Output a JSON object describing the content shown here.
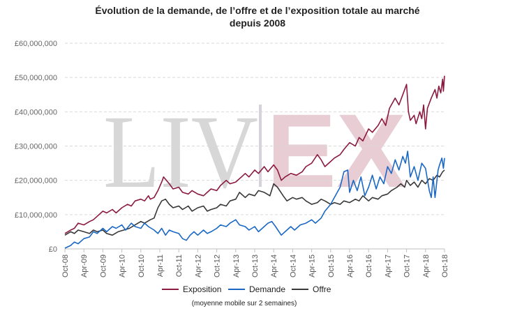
{
  "chart_data": {
    "type": "line",
    "title_line1": "Évolution de la demande, de l’offre et de l’exposition totale au marché",
    "title_line2": "depuis 2008",
    "watermark_left": "LIV",
    "watermark_right": "EX",
    "note": "(moyenne mobile sur 2 semaines)",
    "ylim": [
      0,
      60000000
    ],
    "y_ticks": [
      0,
      10000000,
      20000000,
      30000000,
      40000000,
      50000000,
      60000000
    ],
    "y_tick_labels": [
      "£0",
      "£10,000,000",
      "£20,000,000",
      "£30,000,000",
      "£40,000,000",
      "£50,000,000",
      "£60,000,000"
    ],
    "x_range": [
      2008.75,
      2018.75
    ],
    "x_ticks": [
      2008.75,
      2009.25,
      2009.75,
      2010.25,
      2010.75,
      2011.25,
      2011.75,
      2012.25,
      2012.75,
      2013.25,
      2013.75,
      2014.25,
      2014.75,
      2015.25,
      2015.75,
      2016.25,
      2016.75,
      2017.25,
      2017.75,
      2018.25,
      2018.75
    ],
    "x_tick_labels": [
      "Oct-08",
      "Apr-09",
      "Oct-09",
      "Apr-10",
      "Oct-10",
      "Apr-11",
      "Oct-11",
      "Apr-12",
      "Oct-12",
      "Apr-13",
      "Oct-13",
      "Apr-14",
      "Oct-14",
      "Apr-15",
      "Oct-15",
      "Apr-16",
      "Oct-16",
      "Apr-17",
      "Oct-17",
      "Apr-18",
      "Oct-18"
    ],
    "grid": true,
    "legend_position": "bottom",
    "series": [
      {
        "name": "Exposition",
        "color": "#8b1a3f",
        "points": [
          [
            2008.75,
            4500000
          ],
          [
            2008.9,
            5500000
          ],
          [
            2009.0,
            6000000
          ],
          [
            2009.1,
            7500000
          ],
          [
            2009.25,
            7000000
          ],
          [
            2009.4,
            8000000
          ],
          [
            2009.5,
            8500000
          ],
          [
            2009.6,
            9500000
          ],
          [
            2009.75,
            11000000
          ],
          [
            2009.85,
            10500000
          ],
          [
            2010.0,
            11500000
          ],
          [
            2010.1,
            10500000
          ],
          [
            2010.25,
            12000000
          ],
          [
            2010.4,
            13000000
          ],
          [
            2010.5,
            12500000
          ],
          [
            2010.6,
            14000000
          ],
          [
            2010.75,
            14500000
          ],
          [
            2010.85,
            14000000
          ],
          [
            2010.95,
            15500000
          ],
          [
            2011.0,
            14500000
          ],
          [
            2011.1,
            15000000
          ],
          [
            2011.2,
            17000000
          ],
          [
            2011.3,
            19500000
          ],
          [
            2011.35,
            21000000
          ],
          [
            2011.5,
            19000000
          ],
          [
            2011.6,
            17500000
          ],
          [
            2011.75,
            18000000
          ],
          [
            2011.85,
            16500000
          ],
          [
            2012.0,
            16000000
          ],
          [
            2012.1,
            17000000
          ],
          [
            2012.25,
            16000000
          ],
          [
            2012.4,
            15500000
          ],
          [
            2012.5,
            16500000
          ],
          [
            2012.6,
            17500000
          ],
          [
            2012.75,
            17000000
          ],
          [
            2012.85,
            18500000
          ],
          [
            2013.0,
            20000000
          ],
          [
            2013.1,
            19000000
          ],
          [
            2013.25,
            19500000
          ],
          [
            2013.4,
            21000000
          ],
          [
            2013.5,
            22000000
          ],
          [
            2013.6,
            21000000
          ],
          [
            2013.75,
            23000000
          ],
          [
            2013.85,
            22000000
          ],
          [
            2014.0,
            24000000
          ],
          [
            2014.1,
            22500000
          ],
          [
            2014.25,
            24500000
          ],
          [
            2014.35,
            23000000
          ],
          [
            2014.45,
            20000000
          ],
          [
            2014.55,
            21000000
          ],
          [
            2014.7,
            22000000
          ],
          [
            2014.85,
            21500000
          ],
          [
            2015.0,
            22500000
          ],
          [
            2015.1,
            24000000
          ],
          [
            2015.25,
            25000000
          ],
          [
            2015.4,
            27500000
          ],
          [
            2015.5,
            26000000
          ],
          [
            2015.6,
            24000000
          ],
          [
            2015.75,
            25500000
          ],
          [
            2015.85,
            26500000
          ],
          [
            2016.0,
            27500000
          ],
          [
            2016.1,
            29000000
          ],
          [
            2016.25,
            31000000
          ],
          [
            2016.4,
            30000000
          ],
          [
            2016.5,
            32500000
          ],
          [
            2016.6,
            31500000
          ],
          [
            2016.75,
            35000000
          ],
          [
            2016.85,
            34000000
          ],
          [
            2017.0,
            36000000
          ],
          [
            2017.1,
            38000000
          ],
          [
            2017.2,
            36000000
          ],
          [
            2017.3,
            41000000
          ],
          [
            2017.45,
            44000000
          ],
          [
            2017.55,
            42000000
          ],
          [
            2017.65,
            45000000
          ],
          [
            2017.75,
            48000000
          ],
          [
            2017.8,
            40000000
          ],
          [
            2017.85,
            37500000
          ],
          [
            2017.95,
            39000000
          ],
          [
            2018.0,
            36500000
          ],
          [
            2018.1,
            40000000
          ],
          [
            2018.15,
            38000000
          ],
          [
            2018.2,
            42000000
          ],
          [
            2018.25,
            35000000
          ],
          [
            2018.3,
            41000000
          ],
          [
            2018.4,
            44000000
          ],
          [
            2018.5,
            46500000
          ],
          [
            2018.55,
            44000000
          ],
          [
            2018.6,
            47500000
          ],
          [
            2018.65,
            45500000
          ],
          [
            2018.7,
            49500000
          ],
          [
            2018.72,
            46000000
          ],
          [
            2018.75,
            50500000
          ]
        ]
      },
      {
        "name": "Demande",
        "color": "#1a68c4",
        "points": [
          [
            2008.75,
            200000
          ],
          [
            2008.9,
            1000000
          ],
          [
            2009.0,
            2000000
          ],
          [
            2009.1,
            1500000
          ],
          [
            2009.25,
            3000000
          ],
          [
            2009.4,
            3500000
          ],
          [
            2009.5,
            5000000
          ],
          [
            2009.6,
            4500000
          ],
          [
            2009.75,
            6000000
          ],
          [
            2009.85,
            5000000
          ],
          [
            2010.0,
            6500000
          ],
          [
            2010.1,
            6000000
          ],
          [
            2010.25,
            7000000
          ],
          [
            2010.35,
            5500000
          ],
          [
            2010.5,
            7500000
          ],
          [
            2010.6,
            6500000
          ],
          [
            2010.75,
            6000000
          ],
          [
            2010.85,
            7500000
          ],
          [
            2010.95,
            6500000
          ],
          [
            2011.1,
            5500000
          ],
          [
            2011.2,
            4500000
          ],
          [
            2011.3,
            6000000
          ],
          [
            2011.4,
            4000000
          ],
          [
            2011.5,
            5500000
          ],
          [
            2011.6,
            5000000
          ],
          [
            2011.75,
            4500000
          ],
          [
            2011.85,
            3000000
          ],
          [
            2011.95,
            2500000
          ],
          [
            2012.05,
            4000000
          ],
          [
            2012.15,
            5000000
          ],
          [
            2012.25,
            4000000
          ],
          [
            2012.4,
            5500000
          ],
          [
            2012.5,
            4500000
          ],
          [
            2012.6,
            5000000
          ],
          [
            2012.75,
            6000000
          ],
          [
            2012.85,
            7000000
          ],
          [
            2013.0,
            6500000
          ],
          [
            2013.1,
            7500000
          ],
          [
            2013.25,
            8500000
          ],
          [
            2013.35,
            7000000
          ],
          [
            2013.5,
            6500000
          ],
          [
            2013.6,
            5500000
          ],
          [
            2013.75,
            6500000
          ],
          [
            2013.85,
            5000000
          ],
          [
            2014.0,
            6500000
          ],
          [
            2014.1,
            7500000
          ],
          [
            2014.2,
            8000000
          ],
          [
            2014.3,
            6500000
          ],
          [
            2014.45,
            4000000
          ],
          [
            2014.55,
            5000000
          ],
          [
            2014.7,
            6500000
          ],
          [
            2014.8,
            5500000
          ],
          [
            2014.95,
            7000000
          ],
          [
            2015.1,
            7500000
          ],
          [
            2015.25,
            8500000
          ],
          [
            2015.35,
            7500000
          ],
          [
            2015.5,
            9000000
          ],
          [
            2015.6,
            11000000
          ],
          [
            2015.75,
            13000000
          ],
          [
            2015.85,
            15000000
          ],
          [
            2016.0,
            18000000
          ],
          [
            2016.1,
            22500000
          ],
          [
            2016.2,
            23000000
          ],
          [
            2016.25,
            16500000
          ],
          [
            2016.35,
            20000000
          ],
          [
            2016.45,
            17000000
          ],
          [
            2016.55,
            21000000
          ],
          [
            2016.65,
            15500000
          ],
          [
            2016.75,
            18000000
          ],
          [
            2016.85,
            21500000
          ],
          [
            2016.95,
            17500000
          ],
          [
            2017.05,
            21000000
          ],
          [
            2017.15,
            19000000
          ],
          [
            2017.25,
            24000000
          ],
          [
            2017.35,
            22000000
          ],
          [
            2017.45,
            26000000
          ],
          [
            2017.55,
            23000000
          ],
          [
            2017.65,
            27000000
          ],
          [
            2017.72,
            25000000
          ],
          [
            2017.78,
            28500000
          ],
          [
            2017.85,
            21000000
          ],
          [
            2017.95,
            24000000
          ],
          [
            2018.05,
            20000000
          ],
          [
            2018.15,
            25000000
          ],
          [
            2018.25,
            23500000
          ],
          [
            2018.35,
            17000000
          ],
          [
            2018.4,
            15000000
          ],
          [
            2018.45,
            21000000
          ],
          [
            2018.5,
            15000000
          ],
          [
            2018.58,
            23000000
          ],
          [
            2018.62,
            24500000
          ],
          [
            2018.68,
            26500000
          ],
          [
            2018.72,
            23500000
          ],
          [
            2018.75,
            26500000
          ]
        ]
      },
      {
        "name": "Offre",
        "color": "#383838",
        "points": [
          [
            2008.75,
            4000000
          ],
          [
            2008.9,
            5000000
          ],
          [
            2009.0,
            4500000
          ],
          [
            2009.1,
            5500000
          ],
          [
            2009.25,
            5000000
          ],
          [
            2009.4,
            4500000
          ],
          [
            2009.5,
            5500000
          ],
          [
            2009.6,
            5000000
          ],
          [
            2009.75,
            5500000
          ],
          [
            2009.85,
            4500000
          ],
          [
            2010.0,
            4000000
          ],
          [
            2010.15,
            5000000
          ],
          [
            2010.3,
            5500000
          ],
          [
            2010.45,
            6000000
          ],
          [
            2010.6,
            7000000
          ],
          [
            2010.75,
            8000000
          ],
          [
            2010.85,
            7500000
          ],
          [
            2011.0,
            8500000
          ],
          [
            2011.1,
            9000000
          ],
          [
            2011.2,
            12000000
          ],
          [
            2011.3,
            14000000
          ],
          [
            2011.4,
            14500000
          ],
          [
            2011.5,
            13000000
          ],
          [
            2011.6,
            12000000
          ],
          [
            2011.75,
            12500000
          ],
          [
            2011.85,
            11500000
          ],
          [
            2012.0,
            12500000
          ],
          [
            2012.1,
            11000000
          ],
          [
            2012.25,
            12000000
          ],
          [
            2012.4,
            12500000
          ],
          [
            2012.5,
            11000000
          ],
          [
            2012.6,
            11500000
          ],
          [
            2012.75,
            12000000
          ],
          [
            2012.85,
            13000000
          ],
          [
            2013.0,
            12500000
          ],
          [
            2013.1,
            14000000
          ],
          [
            2013.25,
            14500000
          ],
          [
            2013.35,
            16500000
          ],
          [
            2013.5,
            15000000
          ],
          [
            2013.6,
            16000000
          ],
          [
            2013.75,
            15500000
          ],
          [
            2013.85,
            17000000
          ],
          [
            2014.0,
            16500000
          ],
          [
            2014.15,
            15500000
          ],
          [
            2014.25,
            19000000
          ],
          [
            2014.35,
            18000000
          ],
          [
            2014.5,
            15500000
          ],
          [
            2014.6,
            14000000
          ],
          [
            2014.75,
            15000000
          ],
          [
            2014.85,
            14500000
          ],
          [
            2015.0,
            15000000
          ],
          [
            2015.1,
            14000000
          ],
          [
            2015.25,
            13000000
          ],
          [
            2015.4,
            13500000
          ],
          [
            2015.5,
            14500000
          ],
          [
            2015.6,
            14000000
          ],
          [
            2015.75,
            13000000
          ],
          [
            2015.85,
            13500000
          ],
          [
            2016.0,
            13000000
          ],
          [
            2016.1,
            14000000
          ],
          [
            2016.25,
            13500000
          ],
          [
            2016.4,
            14500000
          ],
          [
            2016.5,
            14000000
          ],
          [
            2016.6,
            15500000
          ],
          [
            2016.75,
            14000000
          ],
          [
            2016.85,
            15000000
          ],
          [
            2017.0,
            14500000
          ],
          [
            2017.1,
            15500000
          ],
          [
            2017.25,
            16000000
          ],
          [
            2017.35,
            17000000
          ],
          [
            2017.5,
            18000000
          ],
          [
            2017.6,
            19000000
          ],
          [
            2017.7,
            18000000
          ],
          [
            2017.75,
            20000000
          ],
          [
            2017.85,
            18500000
          ],
          [
            2017.95,
            19500000
          ],
          [
            2018.05,
            18000000
          ],
          [
            2018.15,
            20000000
          ],
          [
            2018.25,
            19000000
          ],
          [
            2018.35,
            20500000
          ],
          [
            2018.45,
            20000000
          ],
          [
            2018.55,
            21500000
          ],
          [
            2018.62,
            21000000
          ],
          [
            2018.7,
            22500000
          ],
          [
            2018.75,
            23000000
          ]
        ]
      }
    ]
  }
}
